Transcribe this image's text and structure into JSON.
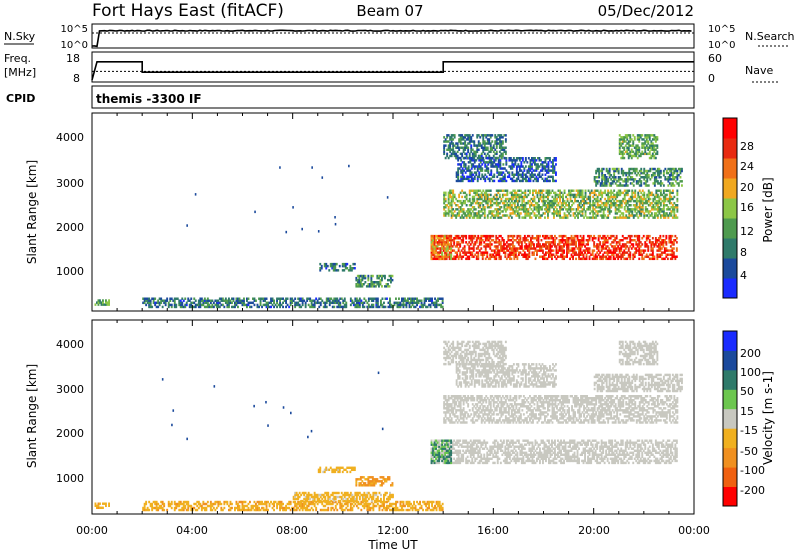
{
  "header": {
    "station": "Fort Hays East (fitACF)",
    "beam": "Beam 07",
    "date": "05/Dec/2012"
  },
  "noise_panel": {
    "left_label": "N.Sky",
    "right_label": "N.Search",
    "left_ticks": [
      "10^5",
      "10^0"
    ],
    "right_ticks": [
      "10^5",
      "10^0"
    ]
  },
  "freq_panel": {
    "left_label_line1": "Freq.",
    "left_label_line2": "[MHz]",
    "right_label": "Nave",
    "left_ticks": [
      "18",
      "8"
    ],
    "right_ticks": [
      "60",
      "0"
    ]
  },
  "cpid": {
    "label": "CPID",
    "value": "themis -3300 IF"
  },
  "power_panel": {
    "ylabel": "Slant Range [km]",
    "yticks": [
      "4000",
      "3000",
      "2000",
      "1000"
    ],
    "colorbar_label": "Power [dB]",
    "colorbar_ticks": [
      "28",
      "24",
      "20",
      "16",
      "12",
      "8",
      "4"
    ]
  },
  "velocity_panel": {
    "ylabel": "Slant Range [km]",
    "yticks": [
      "4000",
      "3000",
      "2000",
      "1000"
    ],
    "colorbar_label": "Velocity [m s-1]",
    "colorbar_ticks": [
      "200",
      "100",
      "50",
      "15",
      "-15",
      "-50",
      "-100",
      "-200"
    ]
  },
  "xaxis": {
    "label": "Time UT",
    "ticks": [
      "00:00",
      "04:00",
      "08:00",
      "12:00",
      "16:00",
      "20:00",
      "00:00"
    ]
  },
  "chart_data": [
    {
      "type": "line",
      "panel": "noise",
      "x_unit": "hours UT",
      "xlim": [
        0,
        24
      ],
      "series": [
        {
          "name": "N.Sky",
          "x": [
            0,
            0.5,
            1,
            6,
            12,
            14,
            18,
            22,
            24
          ],
          "y_log10": [
            0,
            4.2,
            4.3,
            4.2,
            4.3,
            4.1,
            4.3,
            4.2,
            4.4
          ]
        },
        {
          "name": "N.Search",
          "x": [
            0,
            24
          ],
          "y_log10": [
            3.6,
            3.6
          ]
        }
      ]
    },
    {
      "type": "line",
      "panel": "frequency",
      "x_unit": "hours UT",
      "xlim": [
        0,
        24
      ],
      "ylim": [
        8,
        18
      ],
      "series": [
        {
          "name": "Freq.",
          "x": [
            0,
            0.2,
            2.0,
            2.0,
            14.0,
            14.0,
            24
          ],
          "y": [
            8,
            15,
            15,
            11,
            11,
            15,
            15
          ]
        },
        {
          "name": "Nave",
          "x": [
            0,
            24
          ],
          "y_right": [
            20,
            20
          ]
        }
      ]
    },
    {
      "type": "heatmap",
      "panel": "power",
      "x_unit": "hours UT",
      "y_unit": "km",
      "xlim": [
        0,
        24
      ],
      "ylim": [
        180,
        4500
      ],
      "zlim": [
        0,
        30
      ],
      "regions": [
        {
          "t0": 0.1,
          "t1": 0.7,
          "r0": 300,
          "r1": 420,
          "z": 12
        },
        {
          "t0": 2.0,
          "t1": 14.0,
          "r0": 250,
          "r1": 450,
          "z": 8
        },
        {
          "t0": 10.5,
          "t1": 12.0,
          "r0": 700,
          "r1": 950,
          "z": 10
        },
        {
          "t0": 9.0,
          "t1": 10.5,
          "r0": 1050,
          "r1": 1200,
          "z": 8
        },
        {
          "t0": 13.5,
          "t1": 23.3,
          "r0": 1300,
          "r1": 1800,
          "z": 25
        },
        {
          "t0": 13.5,
          "t1": 14.3,
          "r0": 1300,
          "r1": 1800,
          "z": 20
        },
        {
          "t0": 14.0,
          "t1": 23.3,
          "r0": 2200,
          "r1": 2800,
          "z": 14
        },
        {
          "t0": 14.5,
          "t1": 18.5,
          "r0": 3000,
          "r1": 3500,
          "z": 6
        },
        {
          "t0": 14.0,
          "t1": 16.5,
          "r0": 3500,
          "r1": 4000,
          "z": 8
        },
        {
          "t0": 21.0,
          "t1": 22.5,
          "r0": 3500,
          "r1": 4000,
          "z": 12
        },
        {
          "t0": 20.0,
          "t1": 23.5,
          "r0": 2900,
          "r1": 3300,
          "z": 10
        }
      ]
    },
    {
      "type": "heatmap",
      "panel": "velocity",
      "x_unit": "hours UT",
      "y_unit": "km",
      "xlim": [
        0,
        24
      ],
      "ylim": [
        180,
        4500
      ],
      "zlim": [
        -250,
        250
      ],
      "regions": [
        {
          "t0": 0.1,
          "t1": 0.7,
          "r0": 300,
          "r1": 420,
          "z": -40
        },
        {
          "t0": 2.0,
          "t1": 14.0,
          "r0": 250,
          "r1": 450,
          "z": -40
        },
        {
          "t0": 8.0,
          "t1": 12.0,
          "r0": 450,
          "r1": 650,
          "z": -30
        },
        {
          "t0": 10.5,
          "t1": 12.0,
          "r0": 800,
          "r1": 1000,
          "z": -60
        },
        {
          "t0": 9.0,
          "t1": 10.5,
          "r0": 1100,
          "r1": 1200,
          "z": -30
        },
        {
          "t0": 13.5,
          "t1": 23.3,
          "r0": 1300,
          "r1": 1800,
          "z": 0
        },
        {
          "t0": 13.5,
          "t1": 14.3,
          "r0": 1300,
          "r1": 1800,
          "z": 30
        },
        {
          "t0": 14.0,
          "t1": 23.3,
          "r0": 2200,
          "r1": 2800,
          "z": 0
        },
        {
          "t0": 14.5,
          "t1": 18.5,
          "r0": 3000,
          "r1": 3500,
          "z": 0
        },
        {
          "t0": 14.0,
          "t1": 16.5,
          "r0": 3500,
          "r1": 4000,
          "z": 0
        },
        {
          "t0": 21.0,
          "t1": 22.5,
          "r0": 3500,
          "r1": 4000,
          "z": 0
        },
        {
          "t0": 20.0,
          "t1": 23.5,
          "r0": 2900,
          "r1": 3300,
          "z": 0
        }
      ]
    }
  ],
  "colors": {
    "power_scale": [
      "#1a2bff",
      "#1b4a9c",
      "#2f7a6a",
      "#4e9a4e",
      "#8cc646",
      "#f0a820",
      "#f07018",
      "#e82a10",
      "#ff0000"
    ],
    "velocity_scale": [
      "#1a2bff",
      "#1b4a9c",
      "#2f7a6a",
      "#6cc64e",
      "#c8c8c0",
      "#f0b020",
      "#f09020",
      "#f06010",
      "#ff0000"
    ],
    "ground_scatter": "#c8c8c0"
  }
}
